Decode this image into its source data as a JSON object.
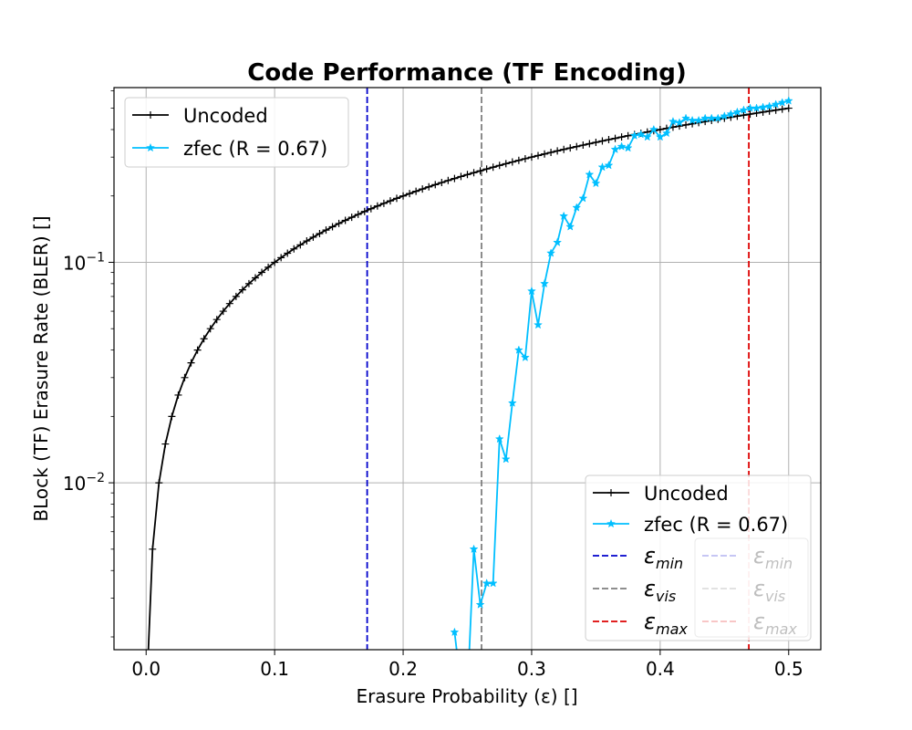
{
  "chart_data": {
    "type": "line",
    "title": "Code Performance (TF Encoding)",
    "xlabel": "Erasure Probability (ε) []",
    "ylabel": "BLock (TF) Erasure Rate (BLER) []",
    "xlim": [
      -0.025,
      0.525
    ],
    "ylim": [
      0.00175,
      0.62
    ],
    "yscale": "log",
    "grid": true,
    "x_ticks": [
      {
        "value": 0.0,
        "label": "0.0"
      },
      {
        "value": 0.1,
        "label": "0.1"
      },
      {
        "value": 0.2,
        "label": "0.2"
      },
      {
        "value": 0.3,
        "label": "0.3"
      },
      {
        "value": 0.4,
        "label": "0.4"
      },
      {
        "value": 0.5,
        "label": "0.5"
      }
    ],
    "y_ticks": [
      {
        "value": 0.01,
        "base": "10",
        "exp": "−2"
      },
      {
        "value": 0.1,
        "base": "10",
        "exp": "−1"
      }
    ],
    "series": [
      {
        "name": "Uncoded",
        "color": "#000000",
        "marker": "plus",
        "x": [
          0,
          0.005,
          0.01,
          0.015,
          0.02,
          0.025,
          0.03,
          0.035,
          0.04,
          0.045,
          0.05,
          0.055,
          0.06,
          0.065,
          0.07,
          0.075,
          0.08,
          0.085,
          0.09,
          0.095,
          0.1,
          0.105,
          0.11,
          0.115,
          0.12,
          0.125,
          0.13,
          0.135,
          0.14,
          0.145,
          0.15,
          0.155,
          0.16,
          0.165,
          0.17,
          0.175,
          0.18,
          0.185,
          0.19,
          0.195,
          0.2,
          0.205,
          0.21,
          0.215,
          0.22,
          0.225,
          0.23,
          0.235,
          0.24,
          0.245,
          0.25,
          0.255,
          0.26,
          0.265,
          0.27,
          0.275,
          0.28,
          0.285,
          0.29,
          0.295,
          0.3,
          0.305,
          0.31,
          0.315,
          0.32,
          0.325,
          0.33,
          0.335,
          0.34,
          0.345,
          0.35,
          0.355,
          0.36,
          0.365,
          0.37,
          0.375,
          0.38,
          0.385,
          0.39,
          0.395,
          0.4,
          0.405,
          0.41,
          0.415,
          0.42,
          0.425,
          0.43,
          0.435,
          0.44,
          0.445,
          0.45,
          0.455,
          0.46,
          0.465,
          0.47,
          0.475,
          0.48,
          0.485,
          0.49,
          0.495,
          0.5
        ],
        "y": [
          0.001,
          0.005,
          0.01,
          0.015,
          0.02,
          0.025,
          0.03,
          0.035,
          0.04,
          0.045,
          0.05,
          0.055,
          0.06,
          0.065,
          0.07,
          0.075,
          0.08,
          0.085,
          0.09,
          0.095,
          0.1,
          0.105,
          0.11,
          0.115,
          0.12,
          0.125,
          0.13,
          0.135,
          0.14,
          0.145,
          0.15,
          0.155,
          0.16,
          0.165,
          0.17,
          0.175,
          0.18,
          0.185,
          0.19,
          0.195,
          0.2,
          0.205,
          0.21,
          0.215,
          0.22,
          0.225,
          0.23,
          0.235,
          0.24,
          0.245,
          0.25,
          0.255,
          0.26,
          0.265,
          0.27,
          0.275,
          0.28,
          0.285,
          0.29,
          0.295,
          0.3,
          0.305,
          0.31,
          0.315,
          0.32,
          0.325,
          0.33,
          0.335,
          0.34,
          0.345,
          0.35,
          0.355,
          0.36,
          0.365,
          0.37,
          0.375,
          0.38,
          0.385,
          0.39,
          0.395,
          0.4,
          0.405,
          0.41,
          0.415,
          0.42,
          0.425,
          0.43,
          0.435,
          0.44,
          0.445,
          0.45,
          0.455,
          0.46,
          0.465,
          0.47,
          0.475,
          0.48,
          0.485,
          0.49,
          0.495,
          0.5
        ]
      },
      {
        "name": "zfec (R = 0.67)",
        "color": "#00bfff",
        "marker": "star",
        "x": [
          0.24,
          0.245,
          0.25,
          0.255,
          0.26,
          0.265,
          0.27,
          0.275,
          0.28,
          0.285,
          0.29,
          0.295,
          0.3,
          0.305,
          0.31,
          0.315,
          0.32,
          0.325,
          0.33,
          0.335,
          0.34,
          0.345,
          0.35,
          0.355,
          0.36,
          0.365,
          0.37,
          0.375,
          0.38,
          0.385,
          0.39,
          0.395,
          0.4,
          0.405,
          0.41,
          0.415,
          0.42,
          0.425,
          0.43,
          0.435,
          0.44,
          0.445,
          0.45,
          0.455,
          0.46,
          0.465,
          0.47,
          0.475,
          0.48,
          0.485,
          0.49,
          0.495,
          0.5
        ],
        "y": [
          0.0021,
          0.0012,
          0.0011,
          0.005,
          0.0028,
          0.0035,
          0.0035,
          0.0158,
          0.0128,
          0.023,
          0.04,
          0.037,
          0.074,
          0.052,
          0.08,
          0.11,
          0.123,
          0.162,
          0.145,
          0.177,
          0.195,
          0.25,
          0.228,
          0.27,
          0.275,
          0.325,
          0.335,
          0.33,
          0.375,
          0.38,
          0.37,
          0.4,
          0.37,
          0.385,
          0.435,
          0.43,
          0.45,
          0.44,
          0.44,
          0.45,
          0.45,
          0.45,
          0.46,
          0.47,
          0.48,
          0.49,
          0.5,
          0.5,
          0.505,
          0.51,
          0.52,
          0.53,
          0.54
        ]
      }
    ],
    "vlines": [
      {
        "name": "ε",
        "sub": "min",
        "x": 0.172,
        "color": "#0000cc",
        "style": "dashed"
      },
      {
        "name": "ε",
        "sub": "vis",
        "x": 0.261,
        "color": "#7f7f7f",
        "style": "dashed"
      },
      {
        "name": "ε",
        "sub": "max",
        "x": 0.469,
        "color": "#dd0000",
        "style": "dashed"
      }
    ],
    "legends": [
      {
        "placement": "upper-left",
        "entries": [
          "Uncoded",
          "zfec (R = 0.67)"
        ]
      },
      {
        "placement": "lower-right",
        "entries": [
          "Uncoded",
          "zfec (R = 0.67)",
          "εmin",
          "εvis",
          "εmax",
          "εmin",
          "εvis",
          "εmax"
        ]
      }
    ]
  }
}
